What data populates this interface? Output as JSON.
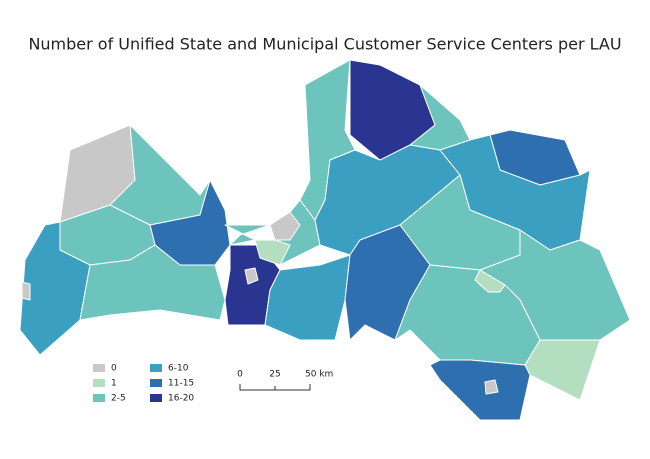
{
  "title": "Number of Unified State and Municipal Customer Service Centers per LAU",
  "legend": [
    {
      "label": "0",
      "color": "#c8c8c8"
    },
    {
      "label": "1",
      "color": "#b3dfc0"
    },
    {
      "label": "2-5",
      "color": "#6cc4bd"
    },
    {
      "label": "6-10",
      "color": "#3a9fc1"
    },
    {
      "label": "11-15",
      "color": "#2e6fb0"
    },
    {
      "label": "16-20",
      "color": "#2a3591"
    }
  ],
  "scale_bar": {
    "labels": [
      "0",
      "25",
      "50 km"
    ]
  }
}
